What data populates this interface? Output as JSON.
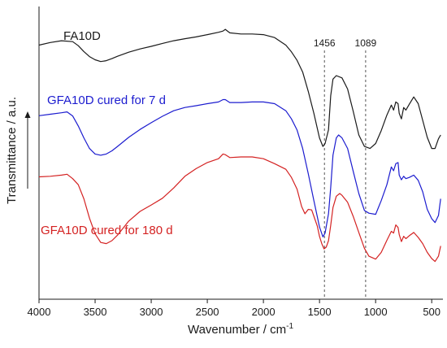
{
  "chart_data": {
    "type": "line",
    "title": "",
    "xlabel": "Wavenumber / cm",
    "xlabel_superscript": "-1",
    "ylabel": "Transmittance / a.u.",
    "xlim": [
      4000,
      400
    ],
    "x_reversed": true,
    "ylim": [
      0,
      100
    ],
    "y_ticks_labeled": false,
    "x_ticks": [
      4000,
      3500,
      3000,
      2500,
      2000,
      1500,
      1000,
      500
    ],
    "x_tick_labels": [
      "4000",
      "3500",
      "3000",
      "2500",
      "2000",
      "1500",
      "1000",
      "500"
    ],
    "grid": false,
    "legend": "none",
    "annotations": [
      {
        "label": "1456",
        "x": 1456,
        "style": "dashed-vertical"
      },
      {
        "label": "1089",
        "x": 1089,
        "style": "dashed-vertical"
      }
    ],
    "series": [
      {
        "name": "FA10D",
        "color": "#1a1a1a",
        "points": [
          [
            4000,
            86.8
          ],
          [
            3900,
            87.7
          ],
          [
            3800,
            88.3
          ],
          [
            3700,
            88.0
          ],
          [
            3650,
            86.6
          ],
          [
            3600,
            84.6
          ],
          [
            3550,
            82.9
          ],
          [
            3500,
            81.8
          ],
          [
            3450,
            81.2
          ],
          [
            3400,
            81.5
          ],
          [
            3350,
            82.2
          ],
          [
            3300,
            83.0
          ],
          [
            3200,
            84.4
          ],
          [
            3100,
            85.5
          ],
          [
            3000,
            86.4
          ],
          [
            2900,
            87.4
          ],
          [
            2800,
            88.3
          ],
          [
            2700,
            89.0
          ],
          [
            2600,
            89.6
          ],
          [
            2500,
            90.4
          ],
          [
            2400,
            91.2
          ],
          [
            2360,
            91.6
          ],
          [
            2340,
            92.2
          ],
          [
            2300,
            91.0
          ],
          [
            2200,
            90.6
          ],
          [
            2100,
            90.6
          ],
          [
            2000,
            90.4
          ],
          [
            1900,
            89.4
          ],
          [
            1800,
            86.8
          ],
          [
            1750,
            84.5
          ],
          [
            1700,
            81.6
          ],
          [
            1650,
            77.6
          ],
          [
            1600,
            71.0
          ],
          [
            1550,
            63.5
          ],
          [
            1500,
            55.1
          ],
          [
            1470,
            52.2
          ],
          [
            1450,
            53.2
          ],
          [
            1420,
            57.9
          ],
          [
            1400,
            69.5
          ],
          [
            1380,
            75.2
          ],
          [
            1350,
            76.4
          ],
          [
            1300,
            75.6
          ],
          [
            1250,
            71.8
          ],
          [
            1200,
            64.2
          ],
          [
            1150,
            56.1
          ],
          [
            1100,
            52.2
          ],
          [
            1050,
            51.5
          ],
          [
            1000,
            53.2
          ],
          [
            950,
            57.6
          ],
          [
            900,
            62.9
          ],
          [
            860,
            66.3
          ],
          [
            840,
            64.6
          ],
          [
            820,
            67.4
          ],
          [
            800,
            66.8
          ],
          [
            790,
            63.5
          ],
          [
            770,
            61.6
          ],
          [
            750,
            65.5
          ],
          [
            730,
            64.6
          ],
          [
            700,
            66.6
          ],
          [
            660,
            69.1
          ],
          [
            620,
            66.8
          ],
          [
            580,
            61.1
          ],
          [
            540,
            55.3
          ],
          [
            500,
            51.5
          ],
          [
            470,
            51.5
          ],
          [
            440,
            54.8
          ],
          [
            420,
            56.1
          ]
        ]
      },
      {
        "name": "GFA10D cured for 7 d",
        "color": "#1c1ccf",
        "points": [
          [
            4000,
            62.7
          ],
          [
            3900,
            63.2
          ],
          [
            3800,
            63.7
          ],
          [
            3750,
            64.0
          ],
          [
            3700,
            62.6
          ],
          [
            3650,
            59.2
          ],
          [
            3600,
            55.1
          ],
          [
            3550,
            51.5
          ],
          [
            3500,
            49.6
          ],
          [
            3450,
            49.2
          ],
          [
            3400,
            49.6
          ],
          [
            3350,
            50.7
          ],
          [
            3300,
            52.2
          ],
          [
            3200,
            55.3
          ],
          [
            3100,
            58.0
          ],
          [
            3000,
            60.3
          ],
          [
            2900,
            62.5
          ],
          [
            2800,
            64.4
          ],
          [
            2700,
            65.5
          ],
          [
            2600,
            66.1
          ],
          [
            2500,
            66.8
          ],
          [
            2400,
            67.4
          ],
          [
            2360,
            68.2
          ],
          [
            2340,
            68.2
          ],
          [
            2300,
            67.2
          ],
          [
            2200,
            67.2
          ],
          [
            2100,
            67.4
          ],
          [
            2000,
            67.4
          ],
          [
            1900,
            66.8
          ],
          [
            1800,
            64.4
          ],
          [
            1750,
            61.6
          ],
          [
            1700,
            57.8
          ],
          [
            1650,
            51.5
          ],
          [
            1600,
            42.9
          ],
          [
            1550,
            33.7
          ],
          [
            1500,
            24.7
          ],
          [
            1470,
            21.3
          ],
          [
            1450,
            22.6
          ],
          [
            1420,
            29.2
          ],
          [
            1400,
            38.1
          ],
          [
            1380,
            49.2
          ],
          [
            1350,
            55.1
          ],
          [
            1330,
            56.1
          ],
          [
            1300,
            55.1
          ],
          [
            1250,
            51.5
          ],
          [
            1200,
            43.7
          ],
          [
            1150,
            36.1
          ],
          [
            1100,
            30.3
          ],
          [
            1060,
            29.4
          ],
          [
            1000,
            29.0
          ],
          [
            950,
            33.7
          ],
          [
            900,
            39.1
          ],
          [
            860,
            45.2
          ],
          [
            840,
            43.9
          ],
          [
            820,
            46.3
          ],
          [
            800,
            46.7
          ],
          [
            790,
            42.4
          ],
          [
            770,
            40.8
          ],
          [
            750,
            42.0
          ],
          [
            730,
            41.2
          ],
          [
            700,
            41.6
          ],
          [
            660,
            42.4
          ],
          [
            620,
            40.6
          ],
          [
            580,
            36.7
          ],
          [
            540,
            30.7
          ],
          [
            500,
            27.5
          ],
          [
            470,
            26.2
          ],
          [
            440,
            28.6
          ],
          [
            420,
            34.3
          ]
        ]
      },
      {
        "name": "GFA10D cured for 180 d",
        "color": "#d42222",
        "points": [
          [
            4000,
            41.8
          ],
          [
            3900,
            42.0
          ],
          [
            3800,
            42.4
          ],
          [
            3750,
            42.7
          ],
          [
            3700,
            41.2
          ],
          [
            3650,
            39.1
          ],
          [
            3600,
            34.3
          ],
          [
            3550,
            27.7
          ],
          [
            3500,
            22.4
          ],
          [
            3450,
            19.4
          ],
          [
            3400,
            19.0
          ],
          [
            3350,
            20.0
          ],
          [
            3300,
            21.9
          ],
          [
            3200,
            26.7
          ],
          [
            3100,
            30.0
          ],
          [
            3000,
            32.2
          ],
          [
            2900,
            34.5
          ],
          [
            2800,
            38.0
          ],
          [
            2700,
            42.0
          ],
          [
            2600,
            44.6
          ],
          [
            2500,
            46.7
          ],
          [
            2400,
            48.0
          ],
          [
            2360,
            49.6
          ],
          [
            2340,
            49.4
          ],
          [
            2300,
            48.4
          ],
          [
            2200,
            48.6
          ],
          [
            2100,
            48.6
          ],
          [
            2000,
            48.0
          ],
          [
            1900,
            46.3
          ],
          [
            1800,
            44.4
          ],
          [
            1750,
            41.6
          ],
          [
            1700,
            37.6
          ],
          [
            1660,
            31.7
          ],
          [
            1630,
            29.2
          ],
          [
            1600,
            30.7
          ],
          [
            1570,
            30.5
          ],
          [
            1520,
            25.0
          ],
          [
            1500,
            21.5
          ],
          [
            1480,
            19.0
          ],
          [
            1460,
            17.2
          ],
          [
            1440,
            17.8
          ],
          [
            1420,
            20.0
          ],
          [
            1400,
            25.2
          ],
          [
            1380,
            31.3
          ],
          [
            1350,
            35.2
          ],
          [
            1320,
            36.1
          ],
          [
            1300,
            35.5
          ],
          [
            1250,
            33.1
          ],
          [
            1200,
            28.3
          ],
          [
            1150,
            22.8
          ],
          [
            1100,
            17.4
          ],
          [
            1060,
            14.7
          ],
          [
            1000,
            13.7
          ],
          [
            950,
            16.0
          ],
          [
            900,
            20.1
          ],
          [
            860,
            23.2
          ],
          [
            840,
            22.6
          ],
          [
            820,
            25.4
          ],
          [
            800,
            24.5
          ],
          [
            790,
            22.1
          ],
          [
            770,
            19.7
          ],
          [
            750,
            21.5
          ],
          [
            730,
            20.7
          ],
          [
            700,
            21.7
          ],
          [
            660,
            22.8
          ],
          [
            620,
            21.1
          ],
          [
            580,
            19.0
          ],
          [
            540,
            16.0
          ],
          [
            500,
            13.9
          ],
          [
            470,
            12.9
          ],
          [
            440,
            14.7
          ],
          [
            420,
            18.2
          ]
        ]
      }
    ]
  }
}
